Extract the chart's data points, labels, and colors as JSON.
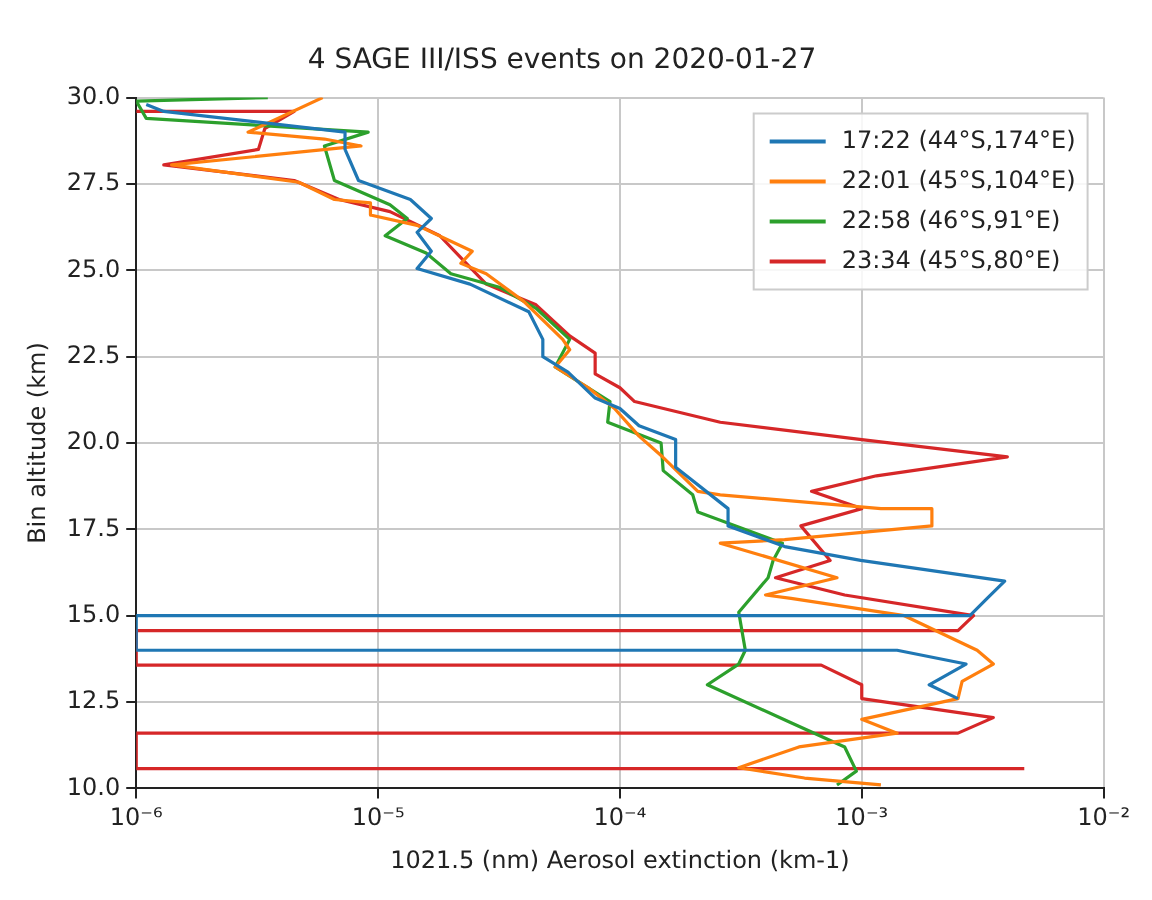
{
  "chart_data": {
    "type": "line",
    "title": "4 SAGE III/ISS events on 2020-01-27",
    "xlabel": "1021.5 (nm) Aerosol extinction (km-1)",
    "ylabel": "Bin altitude (km)",
    "log": "x",
    "grid": true,
    "legend": "top right",
    "xlim": [
      1e-06,
      0.01
    ],
    "xticks": [
      {
        "value": 1e-06,
        "label": "10⁻⁶"
      },
      {
        "value": 1e-05,
        "label": "10⁻⁵"
      },
      {
        "value": 0.0001,
        "label": "10⁻⁴"
      },
      {
        "value": 0.001,
        "label": "10⁻³"
      },
      {
        "value": 0.01,
        "label": "10⁻²"
      }
    ],
    "ylim": [
      10,
      30
    ],
    "yticks": [
      {
        "value": 10,
        "label": "10.0"
      },
      {
        "value": 12.5,
        "label": "12.5"
      },
      {
        "value": 15,
        "label": "15.0"
      },
      {
        "value": 17.5,
        "label": "17.5"
      },
      {
        "value": 20,
        "label": "20.0"
      },
      {
        "value": 22.5,
        "label": "22.5"
      },
      {
        "value": 25,
        "label": "25.0"
      },
      {
        "value": 27.5,
        "label": "27.5"
      },
      {
        "value": 30,
        "label": "30.0"
      }
    ],
    "series": [
      {
        "name": "17:22 (44°S,174°E)",
        "color": "#1f77b4",
        "x": [
          1.1e-06,
          1.3e-06,
          7.3e-06,
          7.3e-06,
          8.3e-06,
          1.36e-05,
          1.66e-05,
          1.45e-05,
          1.66e-05,
          1.45e-05,
          2.4e-05,
          4.2e-05,
          4.8e-05,
          4.8e-05,
          6.1e-05,
          7.9e-05,
          0.0001,
          0.00012,
          0.00017,
          0.00017,
          0.00028,
          0.00028,
          0.00048,
          0.00099,
          0.0039,
          0.0033,
          0.0028,
          1e-06,
          1e-06,
          0.0014,
          0.0027,
          0.0019,
          0.0025
        ],
        "values": [
          29.8,
          29.6,
          29.0,
          28.5,
          27.6,
          27.05,
          26.5,
          26.1,
          25.55,
          25.05,
          24.6,
          23.8,
          23.0,
          22.5,
          22.05,
          21.3,
          21.0,
          20.5,
          20.1,
          19.3,
          18.1,
          17.6,
          17.0,
          16.6,
          16.0,
          15.5,
          15.0,
          15.0,
          14.0,
          14.0,
          13.6,
          13.0,
          12.6
        ]
      },
      {
        "name": "22:01 (45°S,104°E)",
        "color": "#ff7f0e",
        "x": [
          5.9e-06,
          2.9e-06,
          6e-06,
          8.5e-06,
          1.4e-06,
          4.7e-06,
          6.6e-06,
          9.3e-06,
          9.3e-06,
          1.45e-05,
          2.45e-05,
          2.2e-05,
          2.8e-05,
          4e-05,
          5.8e-05,
          6.2e-05,
          5.4e-05,
          7.4e-05,
          9.5e-05,
          0.00012,
          0.00015,
          0.00021,
          0.00026,
          0.0012,
          0.00195,
          0.00195,
          0.00048,
          0.00026,
          0.00079,
          0.0004,
          0.00051,
          0.0015,
          0.003,
          0.0035,
          0.0026,
          0.0025,
          0.001,
          0.0014,
          0.00055,
          0.00031,
          0.00058,
          0.0012
        ],
        "values": [
          30.0,
          29.0,
          28.8,
          28.6,
          28.05,
          27.55,
          27.05,
          26.95,
          26.6,
          26.3,
          25.55,
          25.2,
          24.9,
          24.1,
          23.0,
          22.7,
          22.2,
          21.6,
          21.0,
          20.2,
          19.6,
          18.6,
          18.5,
          18.1,
          18.1,
          17.6,
          17.2,
          17.1,
          16.1,
          15.6,
          15.5,
          15.0,
          14.0,
          13.6,
          13.1,
          12.6,
          12.0,
          11.6,
          11.2,
          10.6,
          10.3,
          10.1
        ]
      },
      {
        "name": "22:58 (46°S,91°E)",
        "color": "#2ca02c",
        "x": [
          3.5e-06,
          1e-06,
          1.1e-06,
          9.1e-06,
          6e-06,
          6.6e-06,
          1.12e-05,
          1.32e-05,
          1.07e-05,
          1.58e-05,
          2e-05,
          3.2e-05,
          4.5e-05,
          6.2e-05,
          5.4e-05,
          9.1e-05,
          8.9e-05,
          0.000148,
          0.000151,
          0.0002,
          0.00021,
          0.00047,
          0.00043,
          0.00041,
          0.00031,
          0.00033,
          0.00031,
          0.00023,
          0.00051,
          0.00085,
          0.00095,
          0.00079
        ],
        "values": [
          30.0,
          29.9,
          29.4,
          29.0,
          28.6,
          27.6,
          26.9,
          26.5,
          26.0,
          25.5,
          24.9,
          24.5,
          23.9,
          23.0,
          22.2,
          21.2,
          20.6,
          20.0,
          19.2,
          18.5,
          18.0,
          17.1,
          16.6,
          16.1,
          15.1,
          14.0,
          13.6,
          13.0,
          11.9,
          11.2,
          10.5,
          10.1
        ]
      },
      {
        "name": "23:34 (45°S,80°E)",
        "color": "#d62728",
        "x": [
          1e-06,
          4.5e-06,
          3.4e-06,
          3.2e-06,
          1.3e-06,
          4.5e-06,
          6.9e-06,
          1.12e-05,
          1.8e-05,
          2.8e-05,
          4.5e-05,
          6.2e-05,
          7.9e-05,
          7.9e-05,
          0.0001,
          0.000115,
          0.00026,
          0.001,
          0.004,
          0.00115,
          0.00062,
          0.001,
          0.00056,
          0.00074,
          0.00044,
          0.00085,
          0.0029,
          0.0025,
          1e-06,
          1e-06,
          0.00068,
          0.001,
          0.001,
          0.0035,
          0.0025,
          1e-06,
          1e-06,
          0.0047
        ],
        "values": [
          29.6,
          29.6,
          29.1,
          28.5,
          28.05,
          27.6,
          27.05,
          26.7,
          26.0,
          24.6,
          24.0,
          23.1,
          22.6,
          22.0,
          21.6,
          21.2,
          20.6,
          20.1,
          19.6,
          19.05,
          18.6,
          18.1,
          17.6,
          16.6,
          16.1,
          15.6,
          15.0,
          14.57,
          14.57,
          13.57,
          13.57,
          13.0,
          12.6,
          12.05,
          11.6,
          11.6,
          10.57,
          10.57
        ]
      }
    ]
  }
}
